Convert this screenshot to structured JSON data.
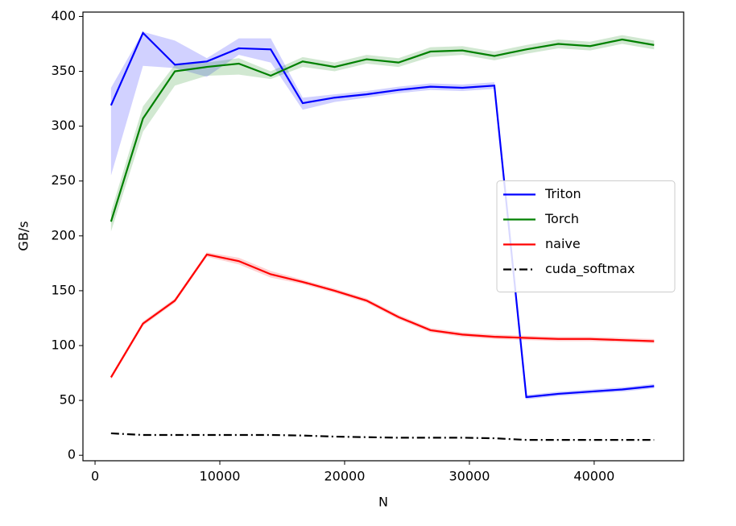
{
  "chart_data": {
    "type": "line",
    "x_label": "N",
    "y_label": "GB/s",
    "x": [
      1280,
      3840,
      6400,
      8960,
      11520,
      14080,
      16640,
      19200,
      21760,
      24320,
      26880,
      29440,
      32000,
      34560,
      37120,
      39680,
      42240,
      44800
    ],
    "series": [
      {
        "name": "Triton",
        "color": "#0000ff",
        "dash": "solid",
        "values": [
          319,
          385,
          356,
          359,
          371,
          370,
          321,
          326,
          329,
          333,
          336,
          335,
          337,
          53,
          56,
          58,
          60,
          63
        ],
        "lower": [
          255,
          355,
          353,
          345,
          365,
          358,
          315,
          322,
          326,
          330,
          333,
          332,
          334,
          51,
          54,
          56,
          58,
          61
        ],
        "upper": [
          335,
          386,
          378,
          362,
          380,
          380,
          326,
          329,
          332,
          336,
          339,
          338,
          340,
          55,
          58,
          60,
          62,
          65
        ]
      },
      {
        "name": "Torch",
        "color": "#008000",
        "dash": "solid",
        "values": [
          213,
          307,
          350,
          354,
          357,
          346,
          359,
          354,
          361,
          358,
          368,
          369,
          364,
          370,
          375,
          373,
          379,
          374
        ],
        "lower": [
          204,
          295,
          337,
          346,
          347,
          343,
          354,
          350,
          357,
          354,
          363,
          365,
          360,
          366,
          371,
          369,
          375,
          370
        ],
        "upper": [
          222,
          318,
          356,
          358,
          362,
          350,
          363,
          358,
          365,
          362,
          372,
          373,
          368,
          374,
          379,
          377,
          383,
          378
        ]
      },
      {
        "name": "naive",
        "color": "#ff0000",
        "dash": "solid",
        "values": [
          71,
          120,
          141,
          183,
          177,
          165,
          158,
          150,
          141,
          126,
          114,
          110,
          108,
          107,
          106,
          106,
          105,
          104
        ],
        "lower": [
          69,
          118,
          139,
          181,
          174,
          162,
          156,
          148,
          139,
          124,
          112,
          108,
          106,
          105,
          104,
          104,
          103,
          102
        ],
        "upper": [
          73,
          122,
          143,
          185,
          180,
          168,
          160,
          152,
          143,
          128,
          116,
          112,
          110,
          109,
          108,
          108,
          107,
          106
        ]
      },
      {
        "name": "cuda_softmax",
        "color": "#000000",
        "dash": "dashdot",
        "values": [
          20,
          18.5,
          18.5,
          18.5,
          18.5,
          18.5,
          18,
          17,
          16.5,
          16,
          16,
          16,
          15.5,
          14,
          14,
          14,
          14,
          14
        ]
      }
    ],
    "xlim": [
      -970,
      47170
    ],
    "ylim": [
      -5,
      404
    ],
    "xticks": [
      0,
      10000,
      20000,
      30000,
      40000
    ],
    "yticks": [
      0,
      50,
      100,
      150,
      200,
      250,
      300,
      350,
      400
    ],
    "grid": false,
    "legend": "center right"
  }
}
